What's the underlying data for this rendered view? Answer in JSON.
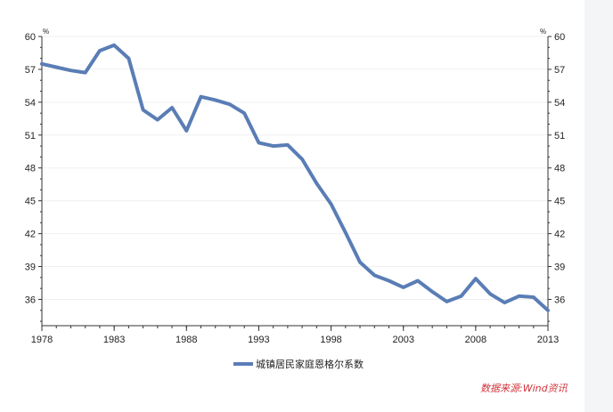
{
  "chart_data": {
    "type": "line",
    "y_unit": "%",
    "x_tick_labels": [
      "1978",
      "1983",
      "1988",
      "1993",
      "1998",
      "2003",
      "2008",
      "2013"
    ],
    "y_tick_labels": [
      "36",
      "39",
      "42",
      "45",
      "48",
      "51",
      "54",
      "57",
      "60"
    ],
    "xlim": [
      1978,
      2013
    ],
    "ylim": [
      33.6,
      60
    ],
    "grid": false,
    "legend_position": "bottom-center",
    "series": [
      {
        "name": "城镇居民家庭恩格尔系数",
        "color": "#5a7db5",
        "x": [
          1978,
          1979,
          1980,
          1981,
          1982,
          1983,
          1984,
          1985,
          1986,
          1987,
          1988,
          1989,
          1990,
          1991,
          1992,
          1993,
          1994,
          1995,
          1996,
          1997,
          1998,
          1999,
          2000,
          2001,
          2002,
          2003,
          2004,
          2005,
          2006,
          2007,
          2008,
          2009,
          2010,
          2011,
          2012,
          2013
        ],
        "values": [
          57.5,
          57.2,
          56.9,
          56.7,
          58.7,
          59.2,
          58.0,
          53.3,
          52.4,
          53.5,
          51.4,
          54.5,
          54.2,
          53.8,
          53.0,
          50.3,
          50.0,
          50.1,
          48.8,
          46.6,
          44.7,
          42.1,
          39.4,
          38.2,
          37.7,
          37.1,
          37.7,
          36.7,
          35.8,
          36.3,
          37.9,
          36.5,
          35.7,
          36.3,
          36.2,
          35.0
        ]
      }
    ],
    "source": "数据来源:Wind资讯",
    "source_color": "#d0333a"
  }
}
